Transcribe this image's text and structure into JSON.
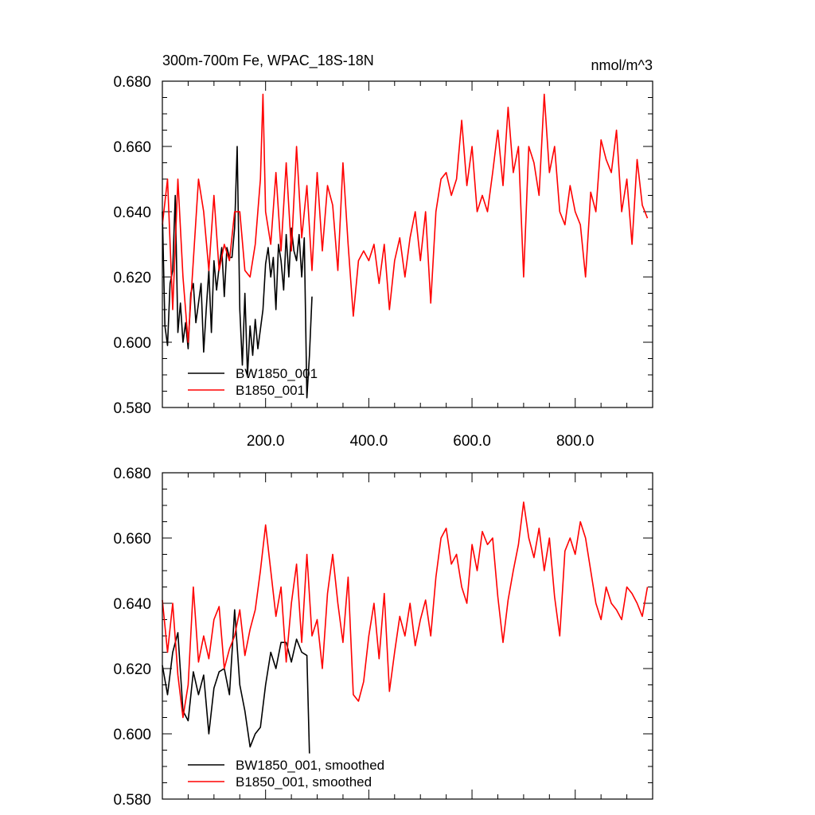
{
  "chart_data": [
    {
      "type": "line",
      "title": "300m-700m Fe, WPAC_18S-18N",
      "units": "nmol/m^3",
      "xlim": [
        0,
        950
      ],
      "ylim": [
        0.58,
        0.68
      ],
      "x_ticks": [
        "200.0",
        "400.0",
        "600.0",
        "800.0"
      ],
      "y_ticks": [
        "0.580",
        "0.600",
        "0.620",
        "0.640",
        "0.660",
        "0.680"
      ],
      "legend_position": "bottom-left",
      "series": [
        {
          "name": "BW1850_001",
          "color": "#000000",
          "x": [
            0,
            5,
            10,
            15,
            20,
            25,
            30,
            35,
            40,
            45,
            50,
            55,
            60,
            65,
            70,
            75,
            80,
            85,
            90,
            95,
            100,
            105,
            110,
            115,
            120,
            125,
            130,
            135,
            140,
            145,
            150,
            155,
            160,
            165,
            170,
            175,
            180,
            185,
            190,
            195,
            200,
            205,
            210,
            215,
            220,
            225,
            230,
            235,
            240,
            245,
            250,
            255,
            260,
            265,
            270,
            275,
            280,
            285,
            290
          ],
          "y": [
            0.64,
            0.605,
            0.599,
            0.618,
            0.622,
            0.645,
            0.603,
            0.612,
            0.6,
            0.606,
            0.598,
            0.615,
            0.618,
            0.606,
            0.612,
            0.618,
            0.597,
            0.61,
            0.622,
            0.603,
            0.625,
            0.616,
            0.623,
            0.629,
            0.614,
            0.629,
            0.626,
            0.626,
            0.635,
            0.66,
            0.61,
            0.593,
            0.615,
            0.59,
            0.605,
            0.596,
            0.607,
            0.598,
            0.604,
            0.61,
            0.624,
            0.629,
            0.62,
            0.626,
            0.61,
            0.63,
            0.625,
            0.616,
            0.633,
            0.62,
            0.635,
            0.628,
            0.625,
            0.633,
            0.62,
            0.632,
            0.583,
            0.596,
            0.614
          ]
        },
        {
          "name": "B1850_001",
          "color": "#ff0000",
          "x": [
            0,
            10,
            20,
            30,
            40,
            50,
            60,
            70,
            80,
            90,
            100,
            110,
            120,
            130,
            140,
            150,
            160,
            170,
            180,
            190,
            195,
            200,
            210,
            220,
            230,
            240,
            250,
            260,
            270,
            280,
            290,
            300,
            310,
            320,
            330,
            340,
            350,
            360,
            370,
            380,
            390,
            400,
            410,
            420,
            430,
            440,
            450,
            460,
            470,
            480,
            490,
            500,
            510,
            520,
            530,
            540,
            550,
            560,
            570,
            580,
            590,
            600,
            610,
            620,
            630,
            640,
            650,
            660,
            670,
            680,
            690,
            700,
            710,
            720,
            730,
            740,
            750,
            760,
            770,
            780,
            790,
            800,
            810,
            820,
            830,
            840,
            850,
            860,
            870,
            880,
            890,
            900,
            910,
            920,
            930,
            940
          ],
          "y": [
            0.636,
            0.65,
            0.61,
            0.65,
            0.62,
            0.6,
            0.625,
            0.65,
            0.64,
            0.622,
            0.645,
            0.622,
            0.63,
            0.625,
            0.64,
            0.64,
            0.622,
            0.62,
            0.63,
            0.65,
            0.676,
            0.64,
            0.63,
            0.652,
            0.628,
            0.655,
            0.628,
            0.66,
            0.632,
            0.648,
            0.622,
            0.652,
            0.628,
            0.648,
            0.642,
            0.622,
            0.655,
            0.63,
            0.608,
            0.625,
            0.628,
            0.625,
            0.63,
            0.618,
            0.63,
            0.61,
            0.625,
            0.632,
            0.62,
            0.632,
            0.64,
            0.625,
            0.64,
            0.612,
            0.64,
            0.65,
            0.652,
            0.645,
            0.65,
            0.668,
            0.648,
            0.66,
            0.64,
            0.645,
            0.64,
            0.652,
            0.665,
            0.648,
            0.672,
            0.652,
            0.66,
            0.62,
            0.66,
            0.655,
            0.645,
            0.676,
            0.652,
            0.66,
            0.64,
            0.636,
            0.648,
            0.64,
            0.636,
            0.62,
            0.646,
            0.64,
            0.662,
            0.656,
            0.652,
            0.665,
            0.64,
            0.65,
            0.63,
            0.656,
            0.642,
            0.638
          ]
        }
      ]
    },
    {
      "type": "line",
      "xlim": [
        0,
        950
      ],
      "ylim": [
        0.58,
        0.68
      ],
      "y_ticks": [
        "0.580",
        "0.600",
        "0.620",
        "0.640",
        "0.660",
        "0.680"
      ],
      "legend_position": "bottom-left",
      "series": [
        {
          "name": "BW1850_001, smoothed",
          "color": "#000000",
          "x": [
            0,
            10,
            20,
            30,
            40,
            50,
            60,
            70,
            80,
            90,
            100,
            110,
            120,
            130,
            140,
            150,
            160,
            170,
            180,
            190,
            200,
            210,
            220,
            230,
            240,
            250,
            260,
            270,
            280,
            285
          ],
          "y": [
            0.621,
            0.612,
            0.625,
            0.631,
            0.607,
            0.604,
            0.619,
            0.612,
            0.618,
            0.6,
            0.614,
            0.619,
            0.62,
            0.612,
            0.638,
            0.615,
            0.607,
            0.596,
            0.6,
            0.602,
            0.615,
            0.625,
            0.62,
            0.628,
            0.628,
            0.622,
            0.629,
            0.625,
            0.624,
            0.594
          ]
        },
        {
          "name": "B1850_001, smoothed",
          "color": "#ff0000",
          "x": [
            0,
            10,
            20,
            30,
            40,
            50,
            60,
            70,
            80,
            90,
            100,
            110,
            120,
            130,
            140,
            150,
            160,
            170,
            180,
            190,
            200,
            210,
            220,
            230,
            240,
            250,
            260,
            270,
            280,
            290,
            300,
            310,
            320,
            330,
            340,
            350,
            360,
            370,
            380,
            390,
            400,
            410,
            420,
            430,
            440,
            450,
            460,
            470,
            480,
            490,
            500,
            510,
            520,
            530,
            540,
            550,
            560,
            570,
            580,
            590,
            600,
            610,
            620,
            630,
            640,
            650,
            660,
            670,
            680,
            690,
            700,
            710,
            720,
            730,
            740,
            750,
            760,
            770,
            780,
            790,
            800,
            810,
            820,
            830,
            840,
            850,
            860,
            870,
            880,
            890,
            900,
            910,
            920,
            930,
            940
          ],
          "y": [
            0.641,
            0.625,
            0.64,
            0.618,
            0.605,
            0.615,
            0.645,
            0.622,
            0.63,
            0.623,
            0.635,
            0.639,
            0.62,
            0.626,
            0.63,
            0.638,
            0.624,
            0.632,
            0.638,
            0.65,
            0.664,
            0.65,
            0.636,
            0.645,
            0.622,
            0.64,
            0.652,
            0.628,
            0.655,
            0.63,
            0.635,
            0.62,
            0.643,
            0.655,
            0.64,
            0.628,
            0.648,
            0.612,
            0.61,
            0.616,
            0.63,
            0.64,
            0.623,
            0.643,
            0.613,
            0.625,
            0.636,
            0.63,
            0.64,
            0.627,
            0.635,
            0.641,
            0.63,
            0.648,
            0.66,
            0.663,
            0.652,
            0.655,
            0.645,
            0.64,
            0.658,
            0.65,
            0.662,
            0.658,
            0.66,
            0.642,
            0.628,
            0.641,
            0.65,
            0.658,
            0.671,
            0.66,
            0.654,
            0.663,
            0.65,
            0.66,
            0.642,
            0.63,
            0.656,
            0.66,
            0.655,
            0.665,
            0.66,
            0.65,
            0.64,
            0.635,
            0.645,
            0.64,
            0.638,
            0.635,
            0.645,
            0.643,
            0.64,
            0.636,
            0.645
          ]
        }
      ]
    }
  ]
}
